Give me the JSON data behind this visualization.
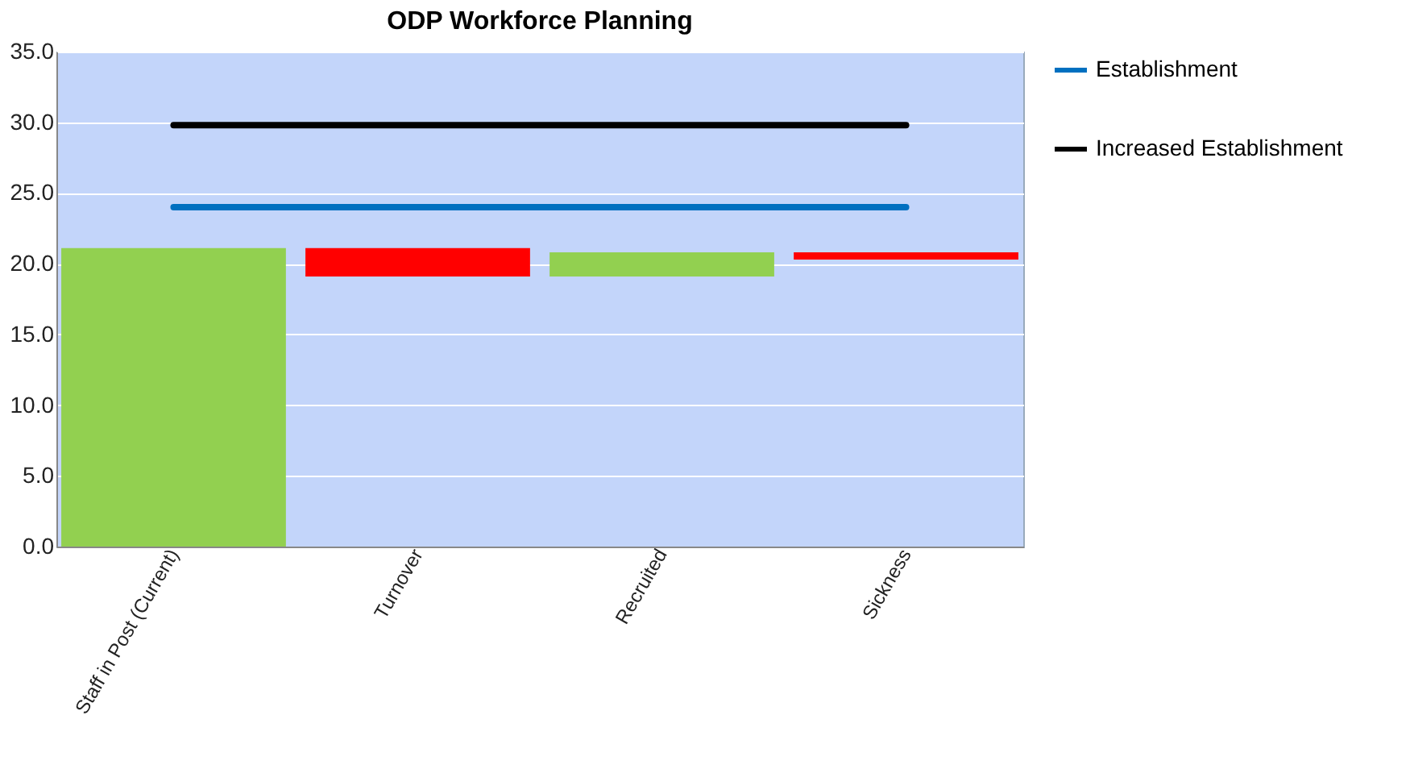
{
  "chart_data": {
    "type": "bar",
    "title": "ODP Workforce Planning",
    "categories": [
      "Staff in Post (Current)",
      "Turnover",
      "Recruited",
      "Sickness"
    ],
    "values": [
      21.1,
      -2.0,
      1.7,
      -0.5
    ],
    "base": [
      0,
      21.1,
      19.1,
      20.8
    ],
    "colors": [
      "#92d050",
      "#ff0000",
      "#92d050",
      "#ff0000"
    ],
    "series": [
      {
        "name": "Establishment",
        "type": "line",
        "color": "#0070c0",
        "values": [
          24.0,
          24.0,
          24.0,
          24.0
        ]
      },
      {
        "name": "Increased Establishment",
        "type": "line",
        "color": "#000000",
        "values": [
          29.8,
          29.8,
          29.8,
          29.8
        ]
      }
    ],
    "ylim": [
      0,
      35
    ],
    "yticks": [
      {
        "value": 0,
        "label": "0.0"
      },
      {
        "value": 5,
        "label": "5.0"
      },
      {
        "value": 10,
        "label": "10.0"
      },
      {
        "value": 15,
        "label": "15.0"
      },
      {
        "value": 20,
        "label": "20.0"
      },
      {
        "value": 25,
        "label": "25.0"
      },
      {
        "value": 30,
        "label": "30.0"
      },
      {
        "value": 35,
        "label": "35.0"
      }
    ],
    "grid": "y",
    "legend": "right",
    "marker": "none",
    "line_style": "solid"
  }
}
